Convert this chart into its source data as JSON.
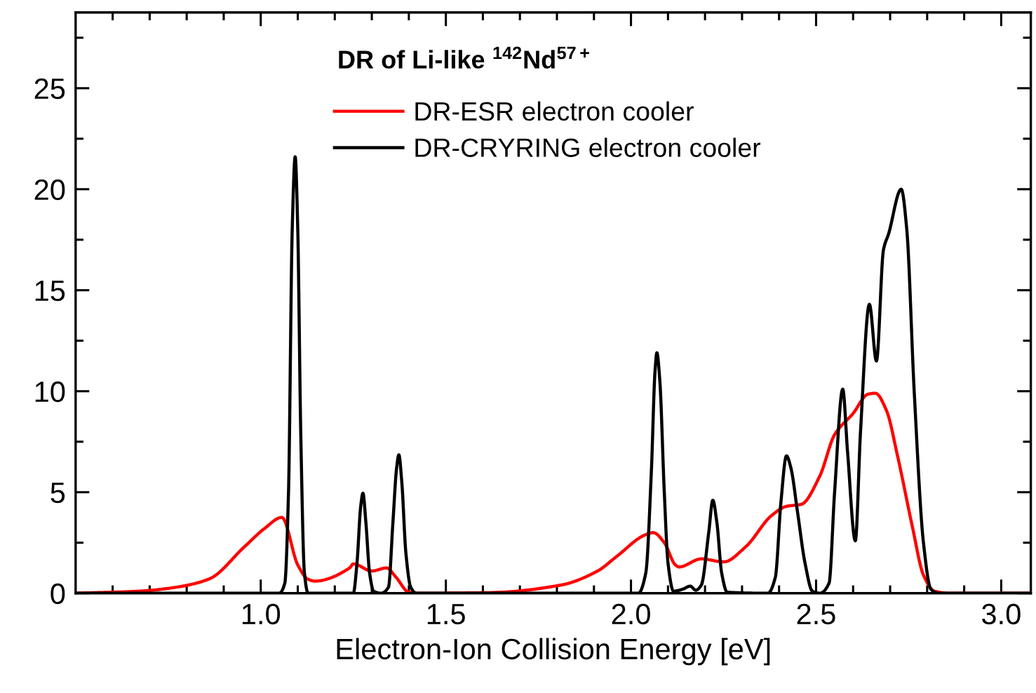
{
  "chart_data": {
    "type": "line",
    "title": "DR of Li-like $^{142}$Nd$^{57+}$",
    "xlabel": "Electron-Ion Collision Energy [eV]",
    "xlim": [
      0.5,
      3.08
    ],
    "ylim": [
      0,
      28.75
    ],
    "xticks": [
      {
        "value": 0.6,
        "label": null
      },
      {
        "value": 0.7,
        "label": null
      },
      {
        "value": 0.8,
        "label": null
      },
      {
        "value": 0.9,
        "label": null
      },
      {
        "value": 1.0,
        "label": "1.0"
      },
      {
        "value": 1.1,
        "label": null
      },
      {
        "value": 1.2,
        "label": null
      },
      {
        "value": 1.3,
        "label": null
      },
      {
        "value": 1.4,
        "label": null
      },
      {
        "value": 1.5,
        "label": "1.5"
      },
      {
        "value": 1.6,
        "label": null
      },
      {
        "value": 1.7,
        "label": null
      },
      {
        "value": 1.8,
        "label": null
      },
      {
        "value": 1.9,
        "label": null
      },
      {
        "value": 2.0,
        "label": "2.0"
      },
      {
        "value": 2.1,
        "label": null
      },
      {
        "value": 2.2,
        "label": null
      },
      {
        "value": 2.3,
        "label": null
      },
      {
        "value": 2.4,
        "label": null
      },
      {
        "value": 2.5,
        "label": "2.5"
      },
      {
        "value": 2.6,
        "label": null
      },
      {
        "value": 2.7,
        "label": null
      },
      {
        "value": 2.8,
        "label": null
      },
      {
        "value": 2.9,
        "label": null
      },
      {
        "value": 3.0,
        "label": "3.0"
      }
    ],
    "yticks": [
      0,
      {
        "value": 2.5,
        "label": null
      },
      5,
      {
        "value": 7.5,
        "label": null
      },
      10,
      {
        "value": 12.5,
        "label": null
      },
      15,
      {
        "value": 17.5,
        "label": null
      },
      20,
      {
        "value": 22.5,
        "label": null
      },
      25,
      {
        "value": 27.5,
        "label": null
      }
    ],
    "grid": false,
    "legend": "top",
    "marker": "none",
    "line_style": "solid",
    "series": [
      {
        "name": "DR-ESR electron cooler",
        "color": "#ff0000",
        "x": [
          0.5,
          0.67,
          0.766,
          0.86,
          0.956,
          1.01,
          1.057,
          1.1,
          1.127,
          1.146,
          1.24,
          1.25,
          1.3,
          1.34,
          1.365,
          1.4,
          1.43,
          1.62,
          1.81,
          1.91,
          1.96,
          2.04,
          2.06,
          2.09,
          2.12,
          2.13,
          2.19,
          2.25,
          2.31,
          2.38,
          2.42,
          2.46,
          2.51,
          2.55,
          2.6,
          2.64,
          2.66,
          2.69,
          2.72,
          2.76,
          2.79,
          2.82,
          2.86,
          3.08
        ],
        "values": [
          0,
          0.1,
          0.28,
          0.7,
          2.3,
          3.2,
          3.75,
          1.4,
          0.7,
          0.6,
          1.25,
          1.45,
          1.1,
          1.25,
          0.8,
          0.05,
          0,
          0.03,
          0.4,
          1.1,
          1.8,
          2.9,
          3.0,
          2.5,
          1.4,
          1.3,
          1.7,
          1.55,
          2.3,
          3.85,
          4.3,
          4.4,
          5.8,
          7.85,
          8.9,
          9.85,
          9.9,
          9.05,
          6.8,
          3.3,
          0.9,
          0.1,
          0,
          0
        ]
      },
      {
        "name": "DR-CRYRING electron cooler",
        "color": "#000000",
        "x": [
          0.5,
          1.05,
          1.065,
          1.075,
          1.085,
          1.093,
          1.1,
          1.108,
          1.118,
          1.128,
          1.25,
          1.26,
          1.27,
          1.276,
          1.284,
          1.294,
          1.305,
          1.325,
          1.345,
          1.357,
          1.367,
          1.373,
          1.381,
          1.392,
          1.405,
          1.42,
          2.02,
          2.04,
          2.055,
          2.065,
          2.07,
          2.078,
          2.09,
          2.1,
          2.115,
          2.14,
          2.16,
          2.175,
          2.19,
          2.21,
          2.221,
          2.232,
          2.245,
          2.26,
          2.37,
          2.39,
          2.405,
          2.42,
          2.432,
          2.45,
          2.47,
          2.49,
          2.51,
          2.535,
          2.55,
          2.572,
          2.585,
          2.606,
          2.62,
          2.644,
          2.663,
          2.682,
          2.696,
          2.73,
          2.745,
          2.765,
          2.79,
          2.81,
          2.83,
          3.08
        ],
        "values": [
          0,
          0,
          0.5,
          5,
          18,
          21.6,
          18,
          8,
          1,
          0,
          0,
          1.5,
          4.3,
          4.95,
          3.5,
          1,
          0.1,
          0,
          0.3,
          3.5,
          6.2,
          6.85,
          5.5,
          2,
          0.3,
          0,
          0,
          1,
          6,
          11,
          11.9,
          10.5,
          5,
          1.5,
          0.1,
          0.2,
          0.35,
          0.15,
          0.4,
          3,
          4.6,
          3.5,
          1,
          0.05,
          0,
          0.8,
          4.5,
          6.8,
          6.2,
          4,
          1.5,
          0.1,
          0,
          0.5,
          5,
          10.1,
          7,
          2.6,
          8,
          14.3,
          11.5,
          17,
          17.8,
          20.0,
          18,
          10,
          2.5,
          0.2,
          0,
          0
        ]
      }
    ]
  }
}
